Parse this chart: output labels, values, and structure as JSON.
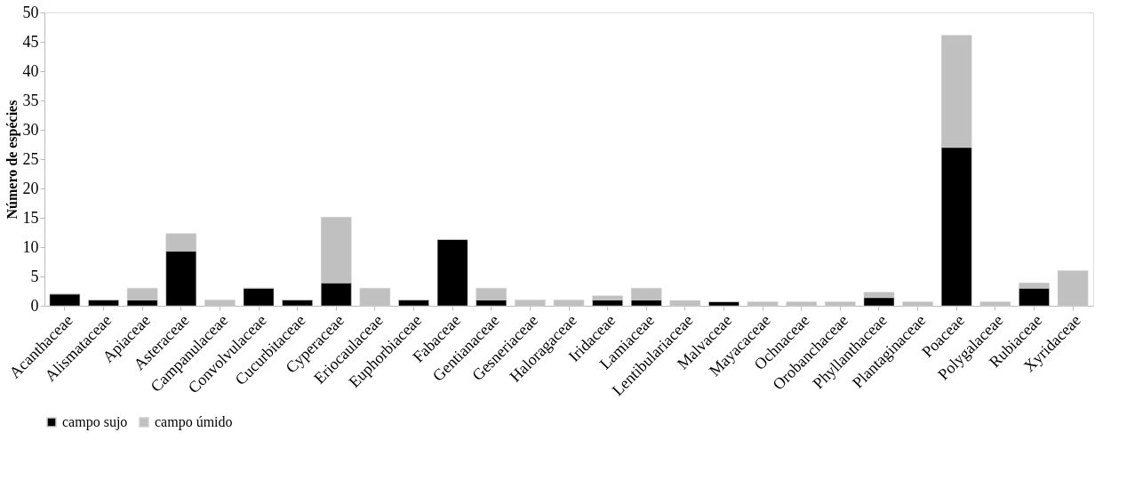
{
  "chart_data": {
    "type": "bar",
    "stacked": true,
    "ylabel": "Número de espécies",
    "categories": [
      "Acanthaceae",
      "Alismataceae",
      "Apiaceae",
      "Asteraceae",
      "Campanulaceae",
      "Convolvulaceae",
      "Cucurbitaceae",
      "Cyperaceae",
      "Eriocaulaceae",
      "Euphorbiaceae",
      "Fabaceae",
      "Gentianaceae",
      "Gesneriaceae",
      "Haloragaceae",
      "Iridaceae",
      "Lamiaceae",
      "Lentibulariaceae",
      "Malvaceae",
      "Mayacaceae",
      "Ochnaceae",
      "Orobanchaceae",
      "Phyllanthaceae",
      "Plantaginaceae",
      "Poaceae",
      "Polygalaceae",
      "Rubiaceae",
      "Xyridaceae"
    ],
    "series": [
      {
        "name": "campo sujo",
        "color": "#000000",
        "values": [
          2,
          1,
          1,
          9.3,
          0,
          3,
          1,
          3.9,
          0,
          1,
          11.3,
          1,
          0,
          0,
          1,
          1,
          0,
          0.7,
          0,
          0,
          0,
          1.4,
          0,
          27,
          0,
          3,
          0
        ]
      },
      {
        "name": "campo úmido",
        "color": "#c0c0c0",
        "values": [
          0,
          0,
          2,
          3,
          1,
          0,
          0,
          11.2,
          3,
          0,
          0,
          2,
          1,
          1,
          0.7,
          2,
          0.9,
          0,
          0.7,
          0.7,
          0.7,
          0.9,
          0.7,
          19.1,
          0.7,
          0.9,
          6
        ]
      }
    ],
    "ylim": [
      0,
      50
    ],
    "yticks": [
      0,
      5,
      10,
      15,
      20,
      25,
      30,
      35,
      40,
      45,
      50
    ],
    "grid": false,
    "legend": "bottom"
  }
}
